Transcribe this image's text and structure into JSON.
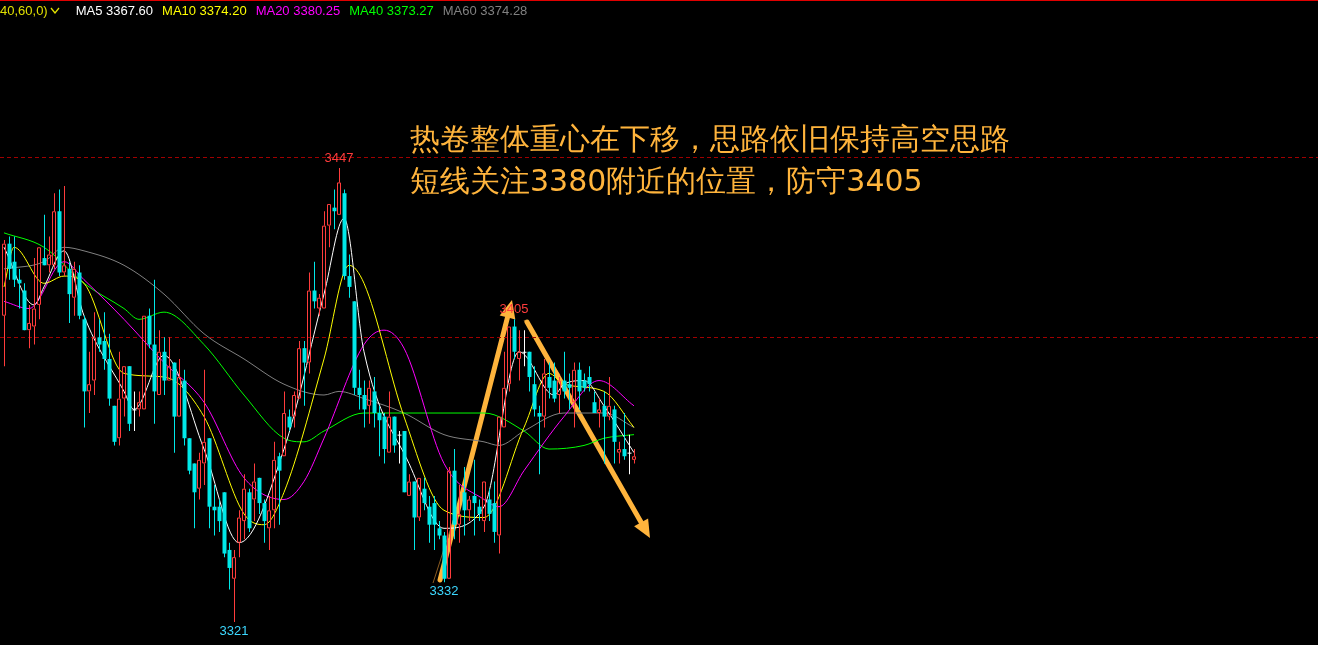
{
  "chart_data": {
    "type": "candlestick",
    "categories": [
      null,
      null,
      null,
      null,
      null,
      null,
      null,
      null,
      null,
      null,
      null,
      null,
      null,
      null,
      null,
      null,
      null,
      null,
      null,
      null,
      null,
      null,
      null,
      null,
      null,
      null,
      null,
      null,
      null,
      null,
      null,
      null,
      null,
      null,
      null,
      null,
      null,
      null,
      null,
      null,
      null,
      null,
      null,
      null,
      null,
      null,
      null,
      null,
      null,
      null,
      null,
      null,
      null,
      null,
      null,
      null,
      null,
      null,
      null,
      null,
      null,
      null,
      null,
      null,
      null,
      null,
      null,
      null,
      null,
      null,
      null,
      null,
      null,
      null,
      null,
      null,
      null,
      null,
      null,
      null,
      null,
      null,
      null,
      null,
      null,
      null,
      null,
      null,
      null,
      null,
      null,
      null,
      null,
      null,
      null,
      null,
      null,
      null,
      null,
      null,
      null,
      null,
      null,
      null,
      null,
      null,
      null,
      null,
      null,
      null,
      null,
      null,
      null,
      null,
      null,
      null,
      null,
      null,
      null,
      null,
      null,
      null,
      null,
      null,
      null,
      null,
      null
    ],
    "ohlc": [
      [
        3406,
        3427,
        3392,
        3426
      ],
      [
        3426,
        3428,
        3416,
        3419
      ],
      [
        3421,
        3428,
        3414,
        3416
      ],
      [
        3416,
        3419,
        3408,
        3415
      ],
      [
        3413,
        3415,
        3402,
        3402
      ],
      [
        3402,
        3409,
        3397,
        3404
      ],
      [
        3403,
        3422,
        3398,
        3408
      ],
      [
        3409,
        3425,
        3405,
        3425
      ],
      [
        3422,
        3434,
        3420,
        3420
      ],
      [
        3420,
        3428,
        3418,
        3423
      ],
      [
        3420,
        3440,
        3419,
        3435
      ],
      [
        3435,
        3441,
        3417,
        3418
      ],
      [
        3418,
        3442,
        3417,
        3420
      ],
      [
        3419,
        3421,
        3404,
        3412
      ],
      [
        3411,
        3421,
        3406,
        3419
      ],
      [
        3418,
        3420,
        3405,
        3406
      ],
      [
        3405,
        3406,
        3375,
        3385
      ],
      [
        3385,
        3396,
        3379,
        3387
      ],
      [
        3388,
        3407,
        3384,
        3400
      ],
      [
        3400,
        3405,
        3396,
        3398
      ],
      [
        3399,
        3407,
        3391,
        3394
      ],
      [
        3394,
        3401,
        3381,
        3383
      ],
      [
        3381,
        3381,
        3370,
        3371
      ],
      [
        3372,
        3396,
        3370,
        3383
      ],
      [
        3383,
        3392,
        3378,
        3392
      ],
      [
        3392,
        3392,
        3374,
        3376
      ],
      [
        3380,
        3385,
        3374,
        3380
      ],
      [
        3380,
        3385,
        3378,
        3382
      ],
      [
        3380,
        3406,
        3380,
        3406
      ],
      [
        3406,
        3408,
        3397,
        3398
      ],
      [
        3398,
        3416,
        3376,
        3385
      ],
      [
        3384,
        3402,
        3384,
        3396
      ],
      [
        3396,
        3400,
        3384,
        3388
      ],
      [
        3388,
        3400,
        3388,
        3392
      ],
      [
        3393,
        3393,
        3368,
        3378
      ],
      [
        3378,
        3394,
        3378,
        3389
      ],
      [
        3388,
        3391,
        3370,
        3372
      ],
      [
        3372,
        3372,
        3362,
        3363
      ],
      [
        3365,
        3365,
        3347,
        3357
      ],
      [
        3358,
        3368,
        3355,
        3366
      ],
      [
        3365,
        3391,
        3359,
        3371
      ],
      [
        3372,
        3372,
        3347,
        3353
      ],
      [
        3353,
        3359,
        3345,
        3352
      ],
      [
        3353,
        3355,
        3346,
        3349
      ],
      [
        3357,
        3357,
        3339,
        3340
      ],
      [
        3341,
        3343,
        3330,
        3336
      ],
      [
        3333,
        3341,
        3321,
        3339
      ],
      [
        3343,
        3352,
        3339,
        3350
      ],
      [
        3349,
        3362,
        3344,
        3358
      ],
      [
        3357,
        3358,
        3346,
        3347
      ],
      [
        3355,
        3365,
        3349,
        3360
      ],
      [
        3361,
        3361,
        3351,
        3354
      ],
      [
        3354,
        3355,
        3343,
        3349
      ],
      [
        3347,
        3356,
        3341,
        3352
      ],
      [
        3352,
        3371,
        3347,
        3366
      ],
      [
        3367,
        3368,
        3348,
        3363
      ],
      [
        3367,
        3385,
        3367,
        3379
      ],
      [
        3378,
        3380,
        3374,
        3375
      ],
      [
        3378,
        3385,
        3375,
        3384
      ],
      [
        3383,
        3399,
        3383,
        3397
      ],
      [
        3397,
        3399,
        3381,
        3393
      ],
      [
        3393,
        3418,
        3390,
        3413
      ],
      [
        3413,
        3421,
        3408,
        3410
      ],
      [
        3408,
        3412,
        3406,
        3411
      ],
      [
        3408,
        3435,
        3408,
        3431
      ],
      [
        3431,
        3437,
        3425,
        3437
      ],
      [
        3436,
        3441,
        3430,
        3435
      ],
      [
        3434,
        3447,
        3434,
        3443
      ],
      [
        3440,
        3441,
        3416,
        3417
      ],
      [
        3417,
        3423,
        3411,
        3414
      ],
      [
        3410,
        3410,
        3384,
        3386
      ],
      [
        3386,
        3391,
        3380,
        3384
      ],
      [
        3384,
        3388,
        3375,
        3380
      ],
      [
        3381,
        3388,
        3376,
        3386
      ],
      [
        3385,
        3389,
        3375,
        3379
      ],
      [
        3379,
        3381,
        3367,
        3377
      ],
      [
        3378,
        3379,
        3365,
        3369
      ],
      [
        3368,
        3385,
        3368,
        3378
      ],
      [
        3378,
        3378,
        3368,
        3370
      ],
      [
        3373,
        3374,
        3365,
        3373
      ],
      [
        3374,
        3374,
        3357,
        3357
      ],
      [
        3356,
        3362,
        3356,
        3360
      ],
      [
        3360,
        3360,
        3341,
        3350
      ],
      [
        3350,
        3361,
        3349,
        3361
      ],
      [
        3358,
        3361,
        3352,
        3354
      ],
      [
        3353,
        3356,
        3343,
        3348
      ],
      [
        3354,
        3356,
        3341,
        3348
      ],
      [
        3347,
        3349,
        3344,
        3345
      ],
      [
        3345,
        3346,
        3332,
        3333
      ],
      [
        3333,
        3364,
        3333,
        3363
      ],
      [
        3363,
        3369,
        3344,
        3348
      ],
      [
        3348,
        3359,
        3343,
        3351
      ],
      [
        3357,
        3364,
        3345,
        3352
      ],
      [
        3352,
        3356,
        3349,
        3355
      ],
      [
        3356,
        3366,
        3345,
        3354
      ],
      [
        3353,
        3355,
        3349,
        3351
      ],
      [
        3349,
        3360,
        3346,
        3360
      ],
      [
        3355,
        3358,
        3349,
        3351
      ],
      [
        3354,
        3360,
        3343,
        3346
      ],
      [
        3345,
        3378,
        3340,
        3378
      ],
      [
        3375,
        3396,
        3375,
        3386
      ],
      [
        3387,
        3403,
        3385,
        3403
      ],
      [
        3403,
        3405,
        3394,
        3396
      ],
      [
        3394,
        3402,
        3388,
        3396
      ],
      [
        3396,
        3402,
        3392,
        3396
      ],
      [
        3396,
        3396,
        3385,
        3389
      ],
      [
        3387,
        3392,
        3378,
        3380
      ],
      [
        3379,
        3381,
        3362,
        3378
      ],
      [
        3378,
        3394,
        3375,
        3390
      ],
      [
        3389,
        3393,
        3383,
        3386
      ],
      [
        3388,
        3393,
        3382,
        3383
      ],
      [
        3384,
        3389,
        3379,
        3388
      ],
      [
        3388,
        3396,
        3383,
        3385
      ],
      [
        3387,
        3390,
        3380,
        3386
      ],
      [
        3382,
        3393,
        3375,
        3391
      ],
      [
        3391,
        3393,
        3380,
        3385
      ],
      [
        3388,
        3390,
        3385,
        3386
      ],
      [
        3389,
        3392,
        3385,
        3387
      ],
      [
        3382,
        3385,
        3379,
        3379
      ],
      [
        3379,
        3383,
        3375,
        3380
      ],
      [
        3381,
        3385,
        3365,
        3378
      ],
      [
        3378,
        3389,
        3377,
        3381
      ],
      [
        3380,
        3381,
        3365,
        3371
      ],
      [
        3368,
        3371,
        3365,
        3369
      ],
      [
        3369,
        3379,
        3366,
        3367
      ],
      [
        3368,
        3373,
        3362,
        3368
      ],
      [
        3366,
        3369,
        3365,
        3367
      ]
    ],
    "value_labels": [
      null,
      null,
      null,
      null,
      null,
      null,
      null,
      null,
      null,
      null,
      null,
      null,
      null,
      null,
      null,
      null,
      null,
      null,
      null,
      null,
      null,
      null,
      null,
      null,
      null,
      null,
      null,
      null,
      null,
      null,
      null,
      null,
      null,
      null,
      null,
      null,
      null,
      null,
      null,
      null,
      null,
      null,
      null,
      null,
      null,
      null,
      "3321",
      null,
      null,
      null,
      null,
      null,
      null,
      null,
      null,
      null,
      null,
      null,
      null,
      null,
      null,
      null,
      null,
      null,
      null,
      null,
      null,
      "3447",
      null,
      null,
      null,
      null,
      null,
      null,
      null,
      null,
      null,
      null,
      null,
      null,
      null,
      null,
      null,
      null,
      null,
      null,
      null,
      null,
      "3332",
      null,
      null,
      null,
      null,
      null,
      null,
      null,
      null,
      null,
      null,
      null,
      null,
      null,
      "3405",
      null,
      null,
      null,
      null,
      null,
      null,
      null,
      null,
      null,
      null,
      null,
      null,
      null,
      null,
      null,
      null,
      null,
      null,
      null,
      null,
      null,
      null,
      null,
      null
    ],
    "series": [
      {
        "name": "MA5 3367.60",
        "type": "line",
        "color": "#ffffff",
        "values": [
          3425,
          null,
          null,
          null,
          null,
          null,
          3409,
          null,
          3414,
          null,
          null,
          null,
          3424,
          null,
          null,
          null,
          3406,
          null,
          null,
          null,
          null,
          null,
          null,
          null,
          3385,
          null,
          3380,
          null,
          null,
          null,
          null,
          null,
          3395,
          null,
          null,
          null,
          null,
          null,
          null,
          null,
          3369,
          null,
          null,
          null,
          null,
          null,
          null,
          3343,
          null,
          null,
          null,
          null,
          null,
          null,
          null,
          null,
          3369,
          null,
          null,
          null,
          null,
          null,
          null,
          null,
          3412,
          null,
          null,
          null,
          3433,
          null,
          null,
          null,
          3396,
          null,
          null,
          null,
          null,
          null,
          null,
          null,
          null,
          3365,
          null,
          null,
          null,
          null,
          null,
          null,
          3347,
          null,
          null,
          null,
          null,
          null,
          null,
          null,
          3353,
          null,
          null,
          null,
          null,
          null,
          null,
          3396,
          null,
          null,
          null,
          null,
          null,
          null,
          3384,
          null,
          3387,
          null,
          null,
          null,
          3388,
          null,
          null,
          null,
          3381,
          null,
          null,
          null,
          null,
          null,
          3368
        ]
      },
      {
        "name": "MA10 3374.20",
        "type": "line",
        "color": "#ffff00",
        "values": [
          3414,
          null,
          3425,
          null,
          null,
          null,
          null,
          null,
          3415,
          null,
          null,
          null,
          3417,
          null,
          null,
          null,
          3415,
          null,
          null,
          null,
          null,
          null,
          null,
          null,
          3390,
          null,
          null,
          null,
          null,
          null,
          null,
          null,
          3389,
          null,
          null,
          null,
          null,
          null,
          null,
          null,
          3378,
          null,
          null,
          null,
          null,
          null,
          null,
          null,
          3351,
          null,
          null,
          null,
          3348,
          null,
          null,
          null,
          3357,
          null,
          null,
          null,
          null,
          null,
          null,
          null,
          3394,
          null,
          null,
          null,
          null,
          3420,
          null,
          null,
          3415,
          null,
          null,
          null,
          null,
          null,
          null,
          null,
          3378,
          null,
          null,
          null,
          null,
          null,
          null,
          null,
          3352,
          null,
          null,
          null,
          null,
          null,
          null,
          null,
          3350,
          null,
          null,
          null,
          null,
          null,
          null,
          null,
          3375,
          null,
          null,
          null,
          null,
          3390,
          null,
          null,
          3387,
          null,
          null,
          null,
          null,
          null,
          null,
          null,
          3385,
          null,
          null,
          null,
          null,
          null,
          3375
        ]
      },
      {
        "name": "MA20 3380.25",
        "type": "line",
        "color": "#ff00ff",
        "values": [
          3410,
          null,
          null,
          null,
          null,
          3408,
          null,
          null,
          null,
          null,
          null,
          null,
          3421,
          null,
          null,
          null,
          3416,
          null,
          null,
          null,
          null,
          null,
          null,
          null,
          3405,
          null,
          null,
          null,
          null,
          null,
          null,
          null,
          3393,
          null,
          null,
          null,
          null,
          null,
          null,
          null,
          3382,
          null,
          null,
          null,
          null,
          null,
          null,
          null,
          3361,
          null,
          null,
          null,
          null,
          null,
          null,
          null,
          3355,
          null,
          null,
          null,
          3360,
          null,
          null,
          null,
          3372,
          null,
          null,
          null,
          null,
          null,
          null,
          null,
          3398,
          null,
          null,
          null,
          3402,
          null,
          null,
          null,
          3397,
          null,
          null,
          null,
          null,
          null,
          null,
          null,
          3365,
          null,
          null,
          null,
          null,
          null,
          null,
          null,
          3355,
          null,
          null,
          3353,
          null,
          null,
          null,
          null,
          3363,
          null,
          null,
          null,
          null,
          null,
          null,
          null,
          3378,
          null,
          null,
          null,
          null,
          null,
          null,
          3388,
          null,
          null,
          null,
          null,
          null,
          null,
          3381
        ]
      },
      {
        "name": "MA40 3373.27",
        "type": "line",
        "color": "#00ff00",
        "values": [
          3429,
          null,
          null,
          null,
          null,
          null,
          null,
          null,
          3425,
          null,
          null,
          null,
          null,
          null,
          null,
          null,
          3415,
          null,
          null,
          null,
          null,
          null,
          null,
          null,
          3408,
          null,
          null,
          3405,
          null,
          null,
          null,
          null,
          3407,
          null,
          null,
          null,
          null,
          null,
          null,
          null,
          3398,
          null,
          null,
          null,
          null,
          null,
          null,
          null,
          3384,
          null,
          null,
          null,
          null,
          null,
          null,
          null,
          3372,
          null,
          null,
          null,
          3371,
          null,
          null,
          null,
          3374,
          null,
          null,
          null,
          null,
          null,
          null,
          null,
          3379,
          null,
          null,
          null,
          null,
          null,
          null,
          null,
          3379,
          null,
          null,
          null,
          null,
          null,
          null,
          null,
          3379,
          null,
          null,
          null,
          null,
          null,
          null,
          null,
          3379,
          null,
          null,
          null,
          null,
          null,
          null,
          null,
          3374,
          null,
          null,
          null,
          null,
          3369,
          null,
          null,
          null,
          null,
          null,
          null,
          3370,
          null,
          null,
          null,
          3372,
          null,
          null,
          null,
          null,
          null,
          3373
        ]
      },
      {
        "name": "MA60 3374.28",
        "type": "line",
        "color": "#808080",
        "values": [
          3419,
          null,
          null,
          null,
          null,
          null,
          null,
          null,
          3421,
          null,
          null,
          null,
          3425,
          null,
          null,
          null,
          3424,
          null,
          null,
          null,
          null,
          null,
          null,
          null,
          3420,
          null,
          null,
          null,
          null,
          null,
          null,
          null,
          3412,
          null,
          null,
          null,
          null,
          null,
          null,
          null,
          3401,
          null,
          null,
          null,
          null,
          null,
          null,
          null,
          3394,
          null,
          null,
          null,
          null,
          null,
          null,
          null,
          3387,
          null,
          null,
          null,
          null,
          null,
          null,
          null,
          3384,
          null,
          null,
          3385,
          null,
          null,
          null,
          null,
          3383,
          null,
          null,
          null,
          null,
          null,
          null,
          null,
          3379,
          null,
          null,
          null,
          null,
          null,
          null,
          null,
          3373,
          null,
          null,
          null,
          null,
          null,
          null,
          null,
          3371,
          null,
          null,
          3370,
          null,
          null,
          null,
          null,
          3374,
          null,
          null,
          null,
          null,
          null,
          null,
          null,
          3379,
          null,
          null,
          null,
          null,
          null,
          null,
          null,
          3379,
          null,
          null,
          null,
          null,
          null,
          3375
        ]
      }
    ],
    "legend": "top left",
    "legend_title": "40,60,0)",
    "ref_lines": [
      {
        "axis": "y",
        "value": 3450,
        "color": "#a00000",
        "line_style": "dashed"
      },
      {
        "axis": "y",
        "value": 3400,
        "color": "#a00000",
        "line_style": "dashed"
      }
    ],
    "annotations": [
      "热卷整体重心在下移，思路依旧保持高空思路",
      "短线关注3380附近的位置，防守3405"
    ]
  }
}
